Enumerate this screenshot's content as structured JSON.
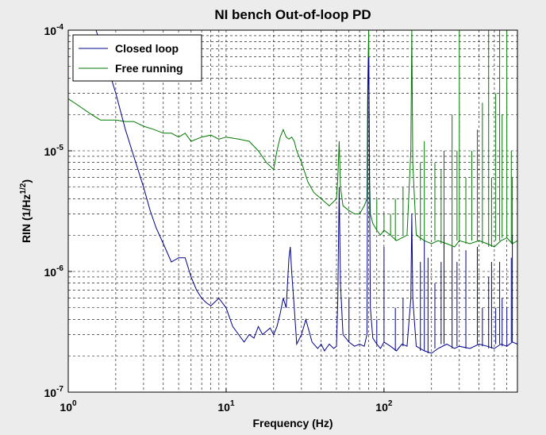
{
  "chart_data": {
    "type": "line",
    "title": "NI bench Out-of-loop PD",
    "xlabel": "Frequency (Hz)",
    "ylabel_main": "RIN (1/Hz",
    "ylabel_sup": "1/2",
    "ylabel_tail": ")",
    "xscale": "log",
    "yscale": "log",
    "xlim": [
      1,
      700
    ],
    "ylim": [
      1e-07,
      0.0001
    ],
    "grid": true,
    "legend_position": "top-left",
    "x_ticks": [
      {
        "value": 1,
        "base": "10",
        "exp": "0"
      },
      {
        "value": 10,
        "base": "10",
        "exp": "1"
      },
      {
        "value": 100,
        "base": "10",
        "exp": "2"
      }
    ],
    "y_ticks": [
      {
        "value": 1e-07,
        "base": "10",
        "exp": "-7"
      },
      {
        "value": 1e-06,
        "base": "10",
        "exp": "-6"
      },
      {
        "value": 1e-05,
        "base": "10",
        "exp": "-5"
      },
      {
        "value": 0.0001,
        "base": "10",
        "exp": "-4"
      }
    ],
    "series": [
      {
        "name": "Closed loop",
        "color": "#00008b",
        "x": [
          1.5,
          1.7,
          2.0,
          2.3,
          2.6,
          3.0,
          3.3,
          3.6,
          4.0,
          4.5,
          5.0,
          5.5,
          6.0,
          6.5,
          7.0,
          7.5,
          8.0,
          9.0,
          10.0,
          11.0,
          12.0,
          13.0,
          14.0,
          15.0,
          16.0,
          17.0,
          18.0,
          19.0,
          20.0,
          21.0,
          22.0,
          23.0,
          24.0,
          25.0,
          25.5,
          26.0,
          27.0,
          28.0,
          30.0,
          32.0,
          35.0,
          38.0,
          40.0,
          42.0,
          45.0,
          48.0,
          50.0,
          51.0,
          52.0,
          53.0,
          55.0,
          60.0,
          65.0,
          70.0,
          75.0,
          78.0,
          79.0,
          80.0,
          81.0,
          82.0,
          85.0,
          90.0,
          95.0,
          100.0,
          110.0,
          120.0,
          130.0,
          140.0,
          148.0,
          150.0,
          152.0,
          160.0,
          180.0,
          200.0,
          220.0,
          250.0,
          280.0,
          300.0,
          350.0,
          400.0,
          450.0,
          500.0,
          550.0,
          600.0,
          650.0,
          700.0
        ],
        "y": [
          0.0001,
          6e-05,
          3e-05,
          1.5e-05,
          9e-06,
          5e-06,
          3.2e-06,
          2.3e-06,
          1.7e-06,
          1.2e-06,
          1.3e-06,
          1.3e-06,
          9e-07,
          7e-07,
          6e-07,
          5.5e-07,
          5.2e-07,
          6e-07,
          5e-07,
          3.5e-07,
          3e-07,
          2.6e-07,
          3e-07,
          2.8e-07,
          3.5e-07,
          3e-07,
          3.2e-07,
          3.4e-07,
          3e-07,
          3.5e-07,
          4.5e-07,
          6e-07,
          5e-07,
          1.3e-06,
          1.6e-06,
          1e-06,
          5e-07,
          2.5e-07,
          3e-07,
          4e-07,
          2.6e-07,
          2.3e-07,
          2.5e-07,
          2.2e-07,
          2.5e-07,
          2.3e-07,
          2.4e-07,
          6e-07,
          5e-06,
          8e-07,
          3e-07,
          2.6e-07,
          2.4e-07,
          2.5e-07,
          2.4e-07,
          3e-07,
          3e-05,
          6e-05,
          5e-06,
          5e-07,
          2.8e-07,
          2.5e-07,
          2.3e-07,
          2.6e-07,
          2.4e-07,
          2.2e-07,
          2.5e-07,
          2.4e-07,
          6e-07,
          3e-06,
          6e-07,
          2.4e-07,
          2.2e-07,
          2.1e-07,
          2.3e-07,
          2.5e-07,
          2.3e-07,
          2.4e-07,
          2.3e-07,
          2.5e-07,
          2.4e-07,
          2.3e-07,
          2.5e-07,
          2.4e-07,
          2.6e-07,
          2.5e-07
        ]
      },
      {
        "name": "Free running",
        "color": "#007a00",
        "x": [
          1.0,
          1.2,
          1.4,
          1.6,
          1.8,
          2.0,
          2.3,
          2.6,
          3.0,
          3.5,
          4.0,
          4.5,
          5.0,
          5.5,
          6.0,
          7.0,
          8.0,
          9.0,
          10.0,
          12.0,
          14.0,
          16.0,
          18.0,
          20.0,
          21.0,
          22.0,
          23.0,
          24.0,
          25.0,
          26.0,
          27.0,
          28.0,
          30.0,
          33.0,
          36.0,
          40.0,
          45.0,
          50.0,
          51.0,
          52.0,
          53.0,
          55.0,
          60.0,
          65.0,
          70.0,
          75.0,
          78.0,
          79.0,
          80.0,
          81.0,
          82.0,
          85.0,
          90.0,
          95.0,
          100.0,
          110.0,
          120.0,
          130.0,
          140.0,
          148.0,
          150.0,
          152.0,
          160.0,
          180.0,
          200.0,
          220.0,
          250.0,
          280.0,
          300.0,
          350.0,
          400.0,
          450.0,
          500.0,
          550.0,
          600.0,
          650.0,
          700.0
        ],
        "y": [
          2.7e-05,
          2.3e-05,
          2e-05,
          1.8e-05,
          1.8e-05,
          1.8e-05,
          1.75e-05,
          1.75e-05,
          1.6e-05,
          1.5e-05,
          1.4e-05,
          1.4e-05,
          1.3e-05,
          1.4e-05,
          1.2e-05,
          1.3e-05,
          1.35e-05,
          1.25e-05,
          1.3e-05,
          1.25e-05,
          1.2e-05,
          1e-05,
          8e-06,
          7e-06,
          1e-05,
          1.3e-05,
          1.5e-05,
          1.3e-05,
          1.25e-05,
          1.3e-05,
          1.2e-05,
          1e-05,
          8e-06,
          5.5e-06,
          4.5e-06,
          4e-06,
          3.5e-06,
          4e-06,
          6e-06,
          1.2e-05,
          5e-06,
          3.5e-06,
          3.2e-06,
          3e-06,
          3e-06,
          3.5e-06,
          4e-06,
          4e-05,
          0.0001,
          6e-06,
          3e-06,
          2.5e-06,
          2.2e-06,
          2e-06,
          2.2e-06,
          2e-06,
          1.8e-06,
          1.9e-06,
          2e-06,
          1e-05,
          0.00012,
          8e-06,
          2e-06,
          1.8e-06,
          1.7e-06,
          1.8e-06,
          1.7e-06,
          1.6e-06,
          1.8e-06,
          1.7e-06,
          1.8e-06,
          1.7e-06,
          1.6e-06,
          1.8e-06,
          1.9e-06,
          1.7e-06,
          1.8e-06
        ]
      }
    ],
    "spikes": [
      {
        "series": "Closed loop",
        "x": [
          60,
          90,
          100,
          118,
          132,
          170,
          180,
          190,
          210,
          230,
          240,
          270,
          290,
          330,
          390,
          420,
          460,
          480,
          510,
          540,
          560,
          600,
          640,
          650
        ],
        "peak": [
          6e-07,
          4e-07,
          1.6e-06,
          5e-07,
          6e-07,
          1.2e-06,
          1.8e-06,
          1.3e-06,
          8e-07,
          1.2e-06,
          2e-06,
          1.6e-06,
          1.2e-06,
          1.5e-06,
          1.6e-06,
          5e-07,
          9e-07,
          1.2e-06,
          5e-07,
          1.2e-06,
          6e-07,
          5e-07,
          1.3e-06,
          2e-06
        ]
      },
      {
        "series": "Free running",
        "x": [
          90,
          100,
          110,
          118,
          132,
          170,
          180,
          210,
          230,
          240,
          270,
          290,
          300,
          330,
          360,
          390,
          420,
          460,
          480,
          510,
          540,
          560,
          600,
          640,
          650
        ],
        "peak": [
          4e-06,
          3e-06,
          3e-06,
          4e-06,
          5e-06,
          8e-06,
          1.2e-05,
          8e-06,
          7e-06,
          1e-05,
          2e-05,
          1e-05,
          0.0001,
          6e-06,
          1e-05,
          1.5e-05,
          2.5e-05,
          0.0001,
          6e-06,
          3e-05,
          0.0001,
          2e-05,
          0.0001,
          1e-05,
          6e-06
        ]
      }
    ]
  }
}
